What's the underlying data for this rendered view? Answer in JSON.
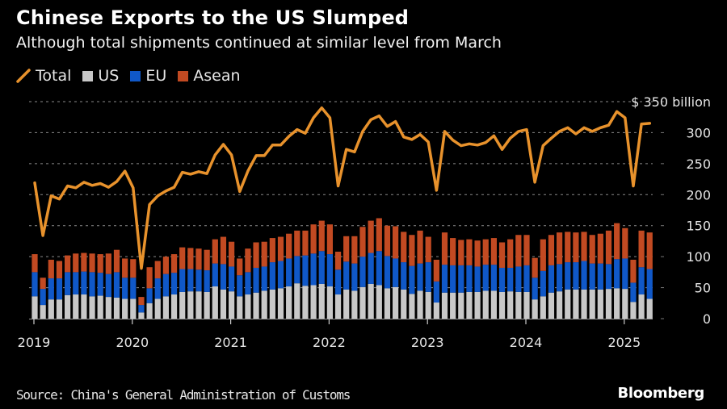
{
  "header": {
    "title": "Chinese Exports to the US Slumped",
    "subtitle": "Although total shipments continued at similar level from March"
  },
  "legend": [
    {
      "label": "Total",
      "icon": "line-swatch-icon",
      "color": "#e8922c"
    },
    {
      "label": "US",
      "icon": "square-swatch-icon",
      "color": "#c8c8c8"
    },
    {
      "label": "EU",
      "icon": "square-swatch-icon",
      "color": "#1058c8"
    },
    {
      "label": "Asean",
      "icon": "square-swatch-icon",
      "color": "#c24a22"
    }
  ],
  "footer": {
    "source": "Source: China's General Administration of Customs",
    "brand": "Bloomberg"
  },
  "chart_data": {
    "type": "bar",
    "stacked": true,
    "title": "Chinese Exports to the US Slumped",
    "subtitle": "Although total shipments continued at similar level from March",
    "xlabel": "",
    "ylabel": "$ billion",
    "y_unit_label": "$ 350 billion",
    "ylim": [
      0,
      350
    ],
    "yticks": [
      0,
      50,
      100,
      150,
      200,
      250,
      300,
      350
    ],
    "ytick_labels": [
      "0",
      "50",
      "100",
      "150",
      "200",
      "250",
      "300",
      "$ 350 billion"
    ],
    "xtick_labels": [
      "2019",
      "2020",
      "2021",
      "2022",
      "2023",
      "2024",
      "2025"
    ],
    "grid": true,
    "legend_position": "top-left",
    "start_month": "2019-01",
    "end_month": "2025-04",
    "series": [
      {
        "name": "US",
        "type": "bar",
        "color": "#c8c8c8",
        "values": [
          36,
          22,
          31,
          31,
          38,
          39,
          39,
          36,
          37,
          35,
          34,
          32,
          32,
          10,
          25,
          32,
          36,
          39,
          43,
          44,
          44,
          43,
          52,
          47,
          44,
          36,
          39,
          42,
          45,
          47,
          49,
          52,
          57,
          53,
          54,
          56,
          52,
          39,
          47,
          45,
          51,
          56,
          54,
          49,
          51,
          47,
          40,
          45,
          43,
          26,
          42,
          42,
          42,
          43,
          43,
          45,
          45,
          43,
          44,
          43,
          43,
          31,
          36,
          42,
          44,
          47,
          47,
          47,
          47,
          47,
          48,
          49,
          48,
          27,
          39,
          32
        ]
      },
      {
        "name": "EU",
        "type": "bar",
        "color": "#1058c8",
        "values": [
          39,
          26,
          34,
          34,
          37,
          36,
          37,
          39,
          37,
          37,
          41,
          34,
          34,
          12,
          24,
          33,
          36,
          35,
          37,
          36,
          35,
          35,
          37,
          41,
          40,
          34,
          36,
          40,
          39,
          44,
          44,
          45,
          44,
          49,
          51,
          53,
          52,
          40,
          45,
          44,
          49,
          50,
          55,
          52,
          46,
          44,
          45,
          44,
          48,
          34,
          45,
          44,
          44,
          43,
          41,
          42,
          42,
          39,
          38,
          41,
          43,
          35,
          41,
          44,
          44,
          44,
          44,
          46,
          42,
          42,
          40,
          47,
          49,
          31,
          44,
          48
        ]
      },
      {
        "name": "Asean",
        "type": "bar",
        "color": "#c24a22",
        "values": [
          29,
          18,
          30,
          28,
          27,
          30,
          30,
          30,
          30,
          33,
          36,
          31,
          30,
          13,
          34,
          28,
          28,
          30,
          35,
          34,
          34,
          33,
          39,
          44,
          40,
          27,
          38,
          41,
          40,
          39,
          39,
          40,
          41,
          40,
          47,
          49,
          48,
          29,
          41,
          44,
          48,
          52,
          53,
          49,
          52,
          49,
          50,
          53,
          41,
          35,
          52,
          44,
          41,
          42,
          42,
          41,
          43,
          41,
          46,
          51,
          49,
          32,
          51,
          49,
          51,
          49,
          48,
          47,
          46,
          48,
          54,
          58,
          49,
          37,
          59,
          59
        ]
      },
      {
        "name": "Total",
        "type": "line",
        "color": "#e8922c",
        "values": [
          219,
          134,
          198,
          193,
          214,
          211,
          220,
          215,
          218,
          212,
          221,
          238,
          211,
          81,
          184,
          198,
          206,
          212,
          236,
          233,
          237,
          234,
          264,
          281,
          264,
          205,
          238,
          263,
          263,
          280,
          280,
          294,
          305,
          299,
          324,
          340,
          324,
          214,
          273,
          269,
          302,
          321,
          327,
          310,
          318,
          293,
          289,
          297,
          285,
          207,
          302,
          288,
          279,
          282,
          280,
          284,
          295,
          273,
          291,
          302,
          305,
          220,
          279,
          291,
          302,
          308,
          298,
          308,
          302,
          308,
          312,
          334,
          324,
          214,
          314,
          315
        ]
      }
    ]
  }
}
